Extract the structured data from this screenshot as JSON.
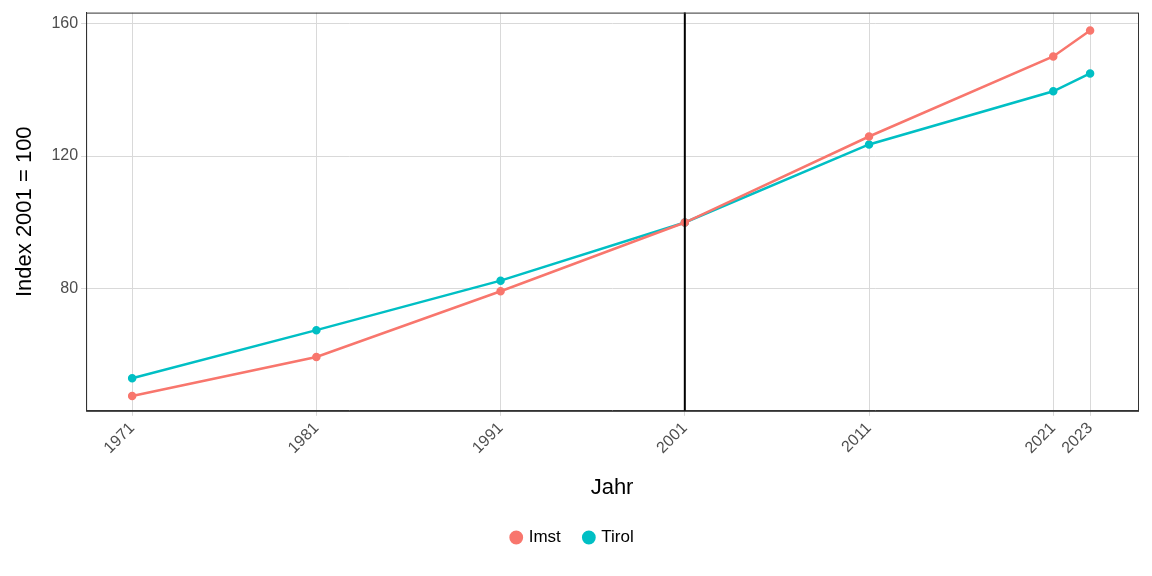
{
  "chart_data": {
    "type": "line",
    "x_label": "Jahr",
    "y_label": "Index 2001 = 100",
    "x": [
      1971,
      1981,
      1991,
      2001,
      2011,
      2021,
      2023
    ],
    "series": [
      {
        "name": "Imst",
        "color": "#F8766D",
        "marker": "circle",
        "values": [
          47.8,
          59.5,
          79.3,
          100,
          125.9,
          150,
          157.8
        ]
      },
      {
        "name": "Tirol",
        "color": "#00BFC4",
        "marker": "circle",
        "values": [
          53.1,
          67.6,
          82.5,
          100,
          123.5,
          139.5,
          144.9
        ]
      }
    ],
    "xlim": [
      1968.5,
      2025.6
    ],
    "xticks": [
      1971,
      1981,
      1991,
      2001,
      2011,
      2021,
      2023
    ],
    "ylim": [
      43.3,
      163.2
    ],
    "yticks": [
      80,
      120,
      160
    ],
    "vline": 2001,
    "grid": true,
    "legend": "bottom"
  }
}
